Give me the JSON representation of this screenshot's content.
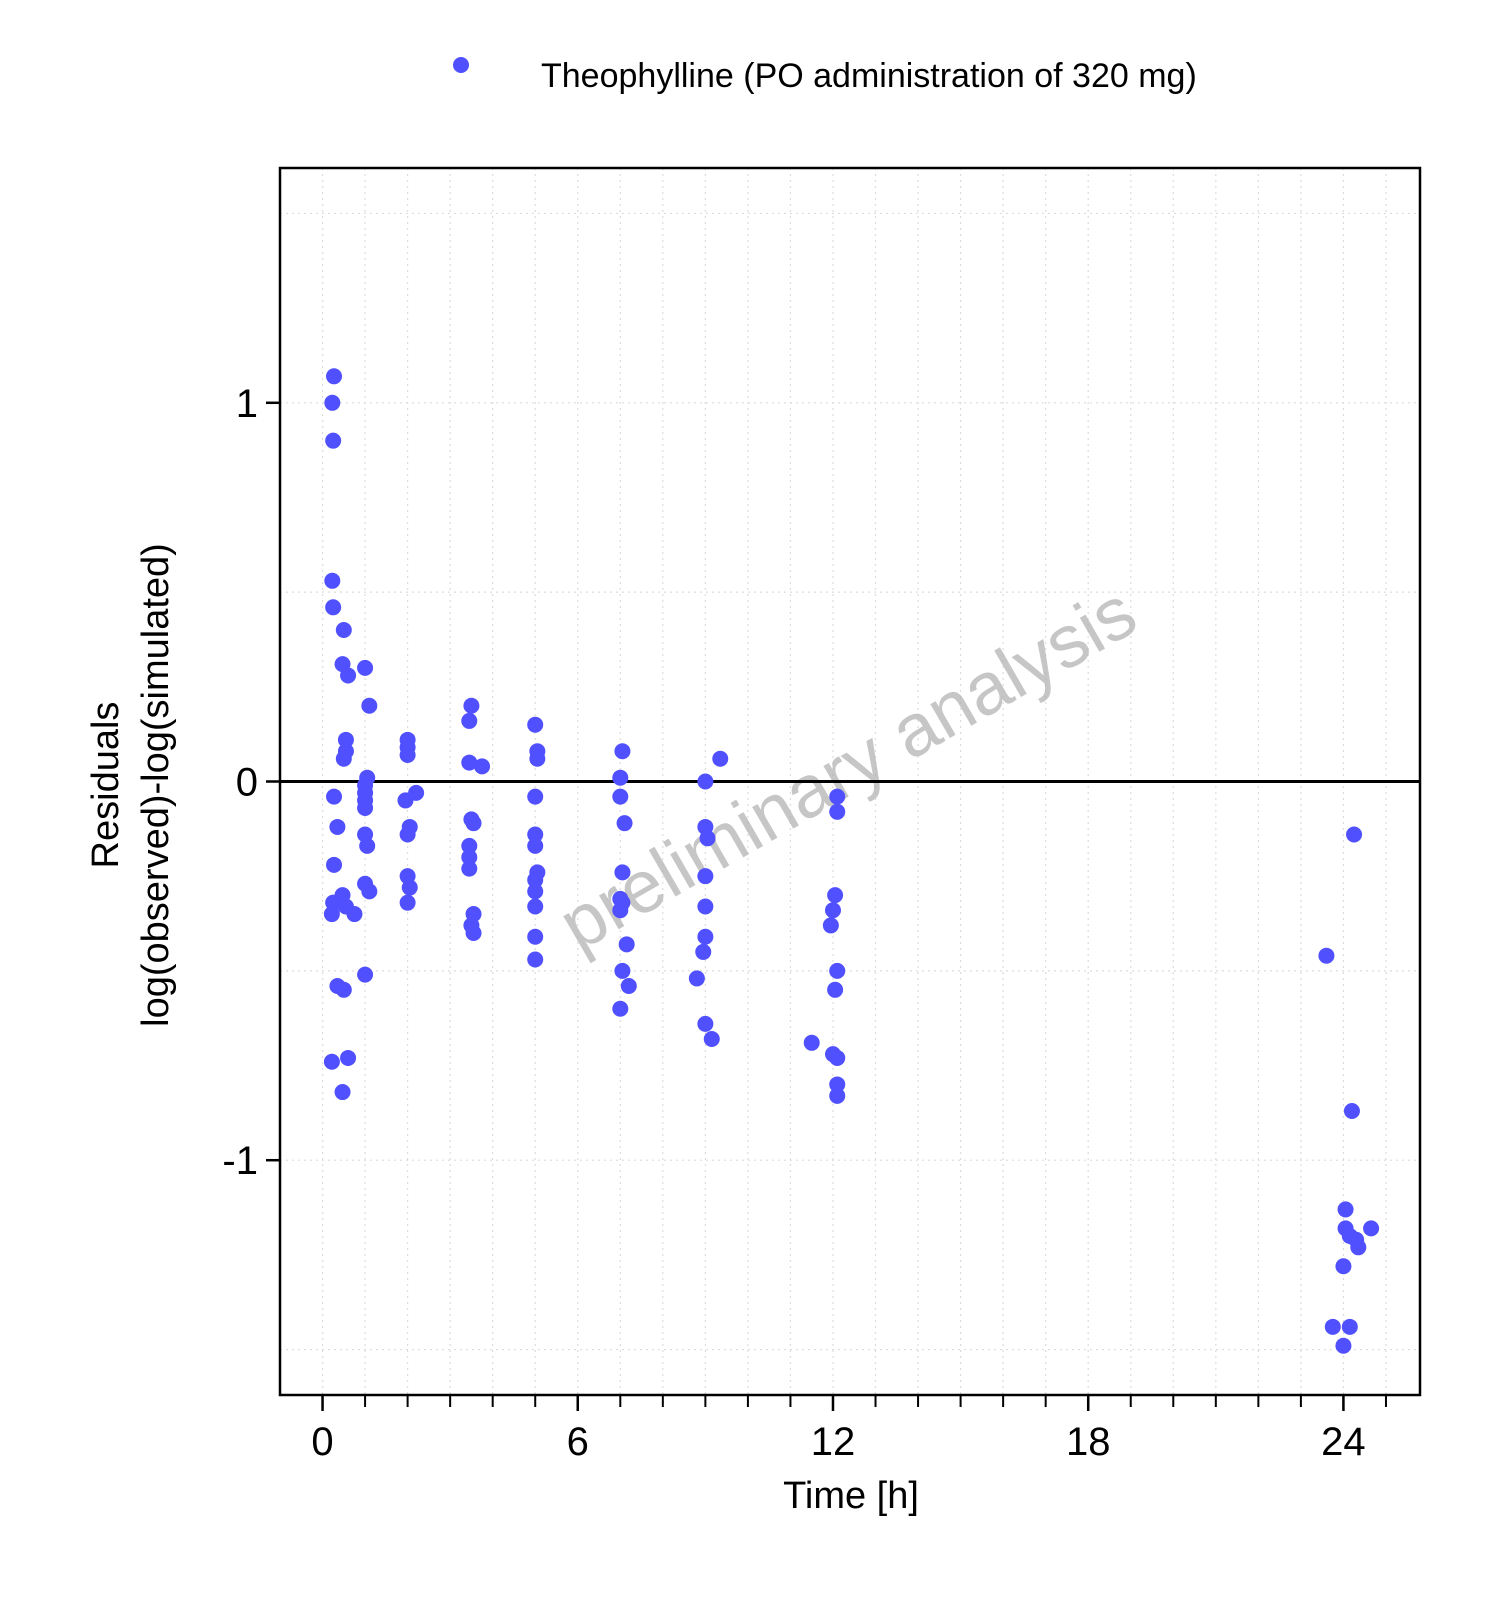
{
  "chart_data": {
    "type": "scatter",
    "title": "",
    "xlabel": "Time [h]",
    "ylabel": [
      "Residuals",
      "log(observed)-log(simulated)"
    ],
    "xlim": [
      -1,
      25.8
    ],
    "ylim": [
      -1.62,
      1.62
    ],
    "xticks": [
      0,
      6,
      12,
      18,
      24
    ],
    "xtick_labels": [
      "0",
      "6",
      "12",
      "18",
      "24"
    ],
    "yticks": [
      -1,
      0,
      1
    ],
    "ytick_labels": [
      "-1",
      "0",
      "1"
    ],
    "grid": true,
    "zero_line": true,
    "legend_position": "top",
    "watermark": "preliminary analysis",
    "series": [
      {
        "name": "Theophylline (PO administration of 320 mg)",
        "color": "#5050ff",
        "points": [
          [
            0.27,
            1.07
          ],
          [
            0.23,
            1.0
          ],
          [
            0.25,
            0.9
          ],
          [
            0.23,
            0.53
          ],
          [
            0.25,
            0.46
          ],
          [
            0.5,
            0.4
          ],
          [
            0.47,
            0.31
          ],
          [
            0.6,
            0.28
          ],
          [
            0.55,
            0.11
          ],
          [
            0.55,
            0.08
          ],
          [
            0.5,
            0.06
          ],
          [
            0.27,
            -0.04
          ],
          [
            0.35,
            -0.12
          ],
          [
            0.27,
            -0.22
          ],
          [
            0.25,
            -0.32
          ],
          [
            0.22,
            -0.35
          ],
          [
            0.47,
            -0.3
          ],
          [
            0.55,
            -0.33
          ],
          [
            0.75,
            -0.35
          ],
          [
            0.35,
            -0.54
          ],
          [
            0.5,
            -0.55
          ],
          [
            0.22,
            -0.74
          ],
          [
            0.6,
            -0.73
          ],
          [
            0.47,
            -0.82
          ],
          [
            1.0,
            0.3
          ],
          [
            1.1,
            0.2
          ],
          [
            1.05,
            0.01
          ],
          [
            1.0,
            -0.01
          ],
          [
            1.0,
            -0.03
          ],
          [
            1.0,
            -0.05
          ],
          [
            1.0,
            -0.07
          ],
          [
            1.0,
            -0.14
          ],
          [
            1.05,
            -0.17
          ],
          [
            1.0,
            -0.27
          ],
          [
            1.1,
            -0.29
          ],
          [
            1.0,
            -0.51
          ],
          [
            2.0,
            0.11
          ],
          [
            2.0,
            0.09
          ],
          [
            2.0,
            0.07
          ],
          [
            1.95,
            -0.05
          ],
          [
            2.2,
            -0.03
          ],
          [
            2.05,
            -0.12
          ],
          [
            2.0,
            -0.14
          ],
          [
            2.0,
            -0.25
          ],
          [
            2.05,
            -0.28
          ],
          [
            2.0,
            -0.32
          ],
          [
            3.5,
            0.2
          ],
          [
            3.45,
            0.16
          ],
          [
            3.45,
            0.05
          ],
          [
            3.75,
            0.04
          ],
          [
            3.5,
            -0.1
          ],
          [
            3.55,
            -0.11
          ],
          [
            3.45,
            -0.17
          ],
          [
            3.45,
            -0.2
          ],
          [
            3.45,
            -0.23
          ],
          [
            3.55,
            -0.35
          ],
          [
            3.5,
            -0.38
          ],
          [
            3.55,
            -0.4
          ],
          [
            5.0,
            0.15
          ],
          [
            5.05,
            0.08
          ],
          [
            5.05,
            0.06
          ],
          [
            5.0,
            -0.04
          ],
          [
            5.0,
            -0.14
          ],
          [
            5.0,
            -0.17
          ],
          [
            5.05,
            -0.24
          ],
          [
            5.0,
            -0.26
          ],
          [
            5.0,
            -0.29
          ],
          [
            5.0,
            -0.33
          ],
          [
            5.0,
            -0.41
          ],
          [
            5.0,
            -0.47
          ],
          [
            7.05,
            0.08
          ],
          [
            7.0,
            0.01
          ],
          [
            7.0,
            -0.04
          ],
          [
            7.1,
            -0.11
          ],
          [
            7.05,
            -0.24
          ],
          [
            7.0,
            -0.31
          ],
          [
            7.05,
            -0.32
          ],
          [
            7.0,
            -0.34
          ],
          [
            7.15,
            -0.43
          ],
          [
            7.05,
            -0.5
          ],
          [
            7.2,
            -0.54
          ],
          [
            7.0,
            -0.6
          ],
          [
            9.35,
            0.06
          ],
          [
            9.0,
            0.0
          ],
          [
            9.0,
            -0.12
          ],
          [
            9.05,
            -0.15
          ],
          [
            9.0,
            -0.25
          ],
          [
            8.8,
            -0.52
          ],
          [
            9.0,
            -0.33
          ],
          [
            9.0,
            -0.41
          ],
          [
            8.95,
            -0.45
          ],
          [
            9.0,
            -0.64
          ],
          [
            9.15,
            -0.68
          ],
          [
            12.1,
            -0.04
          ],
          [
            12.1,
            -0.08
          ],
          [
            12.05,
            -0.3
          ],
          [
            12.0,
            -0.34
          ],
          [
            11.95,
            -0.38
          ],
          [
            12.1,
            -0.5
          ],
          [
            12.05,
            -0.55
          ],
          [
            11.5,
            -0.69
          ],
          [
            12.0,
            -0.72
          ],
          [
            12.1,
            -0.73
          ],
          [
            12.1,
            -0.8
          ],
          [
            12.1,
            -0.83
          ],
          [
            23.6,
            -0.46
          ],
          [
            23.75,
            -1.44
          ],
          [
            24.0,
            -1.49
          ],
          [
            24.15,
            -1.44
          ],
          [
            24.25,
            -0.14
          ],
          [
            24.2,
            -0.87
          ],
          [
            24.05,
            -1.13
          ],
          [
            24.05,
            -1.18
          ],
          [
            24.15,
            -1.2
          ],
          [
            24.3,
            -1.21
          ],
          [
            24.35,
            -1.23
          ],
          [
            24.0,
            -1.28
          ],
          [
            24.65,
            -1.18
          ]
        ]
      }
    ]
  }
}
